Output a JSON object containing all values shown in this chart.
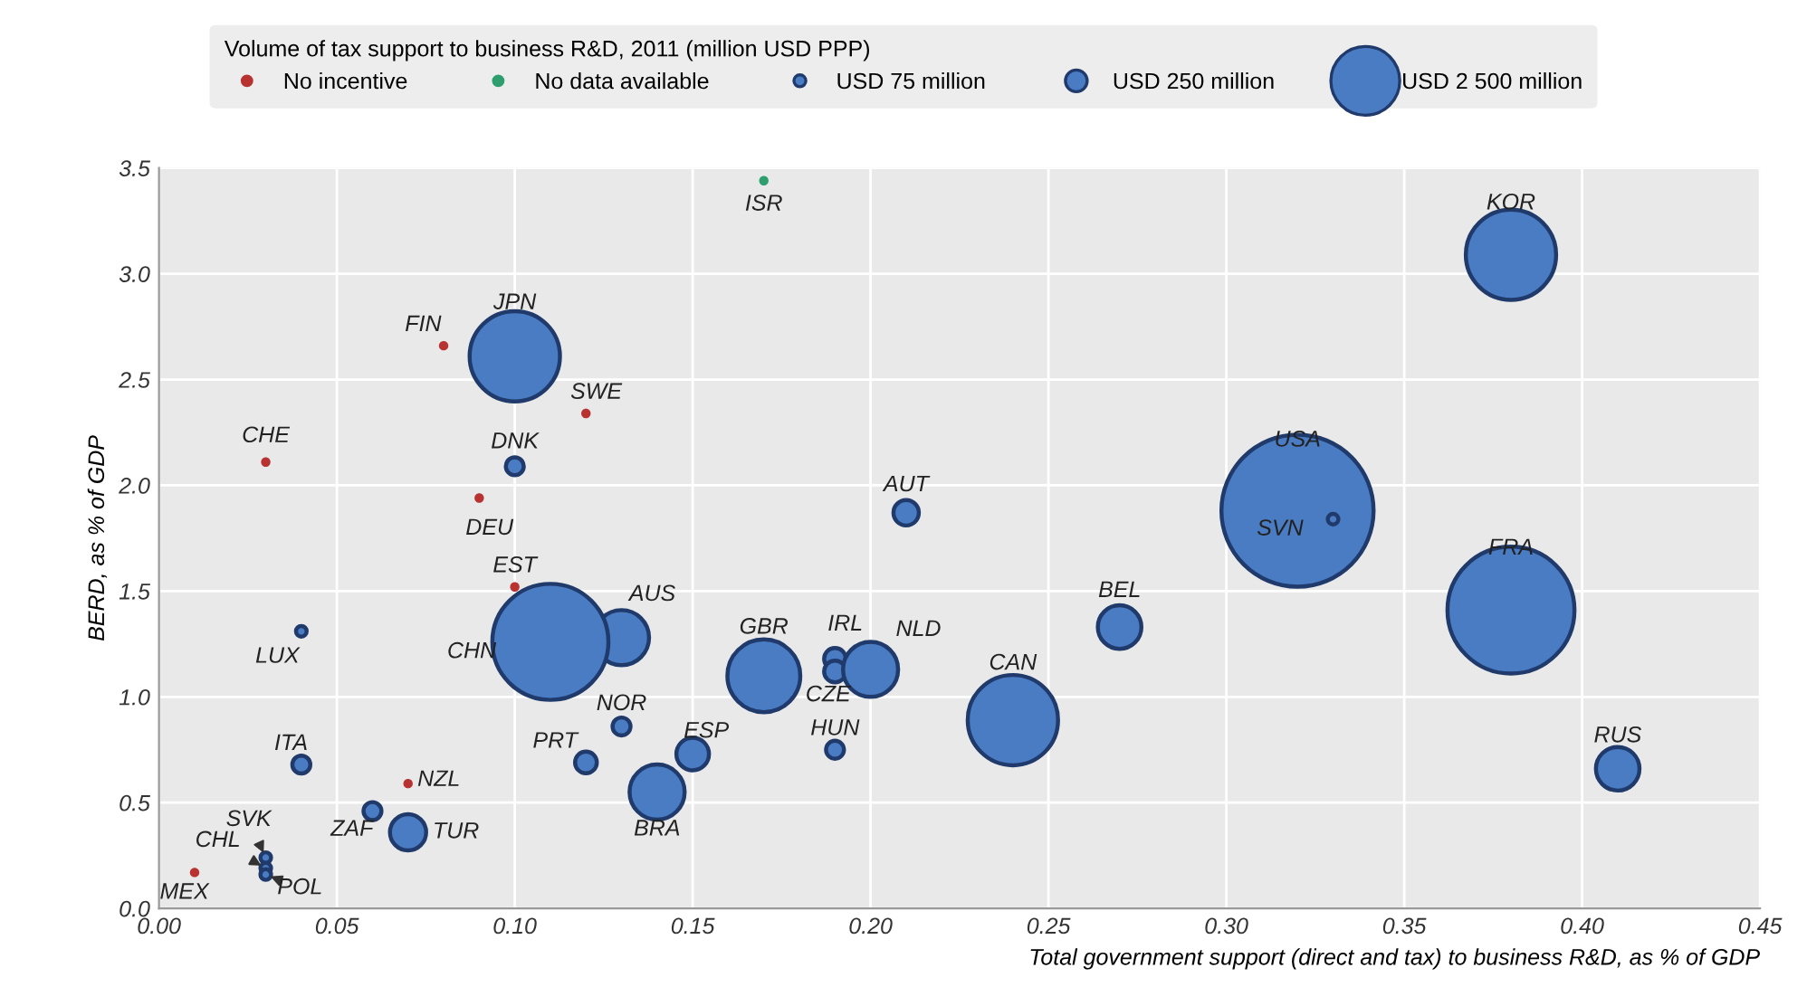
{
  "chart_data": {
    "type": "bubble",
    "legend_title": "Volume of tax support to business R&D, 2011 (million USD PPP)",
    "xlabel": "Total government support (direct and tax) to business R&D, as % of GDP",
    "ylabel": "BERD, as % of GDP",
    "xlim": [
      0,
      0.45
    ],
    "ylim": [
      0,
      3.5
    ],
    "xticks": [
      {
        "value": 0,
        "label": "0.00"
      },
      {
        "value": 0.05,
        "label": "0.05"
      },
      {
        "value": 0.1,
        "label": "0.10"
      },
      {
        "value": 0.15,
        "label": "0.15"
      },
      {
        "value": 0.2,
        "label": "0.20"
      },
      {
        "value": 0.25,
        "label": "0.25"
      },
      {
        "value": 0.3,
        "label": "0.30"
      },
      {
        "value": 0.35,
        "label": "0.35"
      },
      {
        "value": 0.4,
        "label": "0.40"
      },
      {
        "value": 0.45,
        "label": "0.45"
      }
    ],
    "yticks": [
      {
        "value": 0,
        "label": "0.0"
      },
      {
        "value": 0.5,
        "label": "0.5"
      },
      {
        "value": 1,
        "label": "1.0"
      },
      {
        "value": 1.5,
        "label": "1.5"
      },
      {
        "value": 2,
        "label": "2.0"
      },
      {
        "value": 2.5,
        "label": "2.5"
      },
      {
        "value": 3,
        "label": "3.0"
      },
      {
        "value": 3.5,
        "label": "3.5"
      }
    ],
    "grid": true,
    "legend": "top",
    "size_legend": [
      {
        "value": 75,
        "label": "USD 75 million"
      },
      {
        "value": 250,
        "label": "USD 250 million"
      },
      {
        "value": 2500,
        "label": "USD 2 500 million"
      }
    ],
    "series": [
      {
        "name": "No incentive",
        "type": "scatter",
        "color": "#b83232",
        "x": [
          0.08,
          0.12,
          0.03,
          0.09,
          0.1,
          0.07,
          0.01
        ],
        "values": [
          2.66,
          2.34,
          2.11,
          1.94,
          1.52,
          0.59,
          0.17
        ]
      },
      {
        "name": "No data available",
        "type": "scatter",
        "color": "#2e9e6e",
        "x": [
          0.17
        ],
        "values": [
          3.44
        ]
      },
      {
        "color": "#4a7cc4",
        "x": [
          0.1,
          0.1,
          0.21,
          0.13,
          0.11,
          0.04,
          0.17,
          0.19,
          0.19,
          0.2,
          0.13,
          0.12,
          0.15,
          0.19,
          0.14,
          0.04,
          0.06,
          0.07,
          0.03,
          0.03,
          0.03,
          0.38,
          0.32,
          0.33,
          0.38,
          0.27,
          0.24,
          0.41
        ],
        "values": [
          2.61,
          2.09,
          1.87,
          1.28,
          1.26,
          1.31,
          1.1,
          1.18,
          1.12,
          1.13,
          0.86,
          0.69,
          0.73,
          0.75,
          0.55,
          0.68,
          0.46,
          0.36,
          0.24,
          0.19,
          0.16,
          3.09,
          1.88,
          1.84,
          1.41,
          1.33,
          0.89,
          0.66
        ],
        "sizes": [
          4300,
          170,
          340,
          1600,
          7100,
          60,
          2800,
          250,
          250,
          1600,
          170,
          250,
          560,
          170,
          1600,
          170,
          170,
          690,
          60,
          60,
          60,
          4300,
          12200,
          60,
          8500,
          1000,
          4300,
          1000
        ]
      }
    ],
    "annotations": [
      {
        "text": "ISR",
        "x": 0.17,
        "y": 3.44
      },
      {
        "text": "KOR",
        "x": 0.38,
        "y": 3.09
      },
      {
        "text": "JPN",
        "x": 0.1,
        "y": 2.61
      },
      {
        "text": "FIN",
        "x": 0.08,
        "y": 2.66
      },
      {
        "text": "SWE",
        "x": 0.12,
        "y": 2.34
      },
      {
        "text": "CHE",
        "x": 0.03,
        "y": 2.11
      },
      {
        "text": "DNK",
        "x": 0.1,
        "y": 2.09
      },
      {
        "text": "DEU",
        "x": 0.09,
        "y": 1.94
      },
      {
        "text": "EST",
        "x": 0.1,
        "y": 1.52
      },
      {
        "text": "AUT",
        "x": 0.21,
        "y": 1.87
      },
      {
        "text": "USA",
        "x": 0.32,
        "y": 1.88
      },
      {
        "text": "SVN",
        "x": 0.33,
        "y": 1.84
      },
      {
        "text": "FRA",
        "x": 0.38,
        "y": 1.41
      },
      {
        "text": "BEL",
        "x": 0.27,
        "y": 1.33
      },
      {
        "text": "AUS",
        "x": 0.13,
        "y": 1.28
      },
      {
        "text": "LUX",
        "x": 0.04,
        "y": 1.31
      },
      {
        "text": "CHN",
        "x": 0.11,
        "y": 1.26
      },
      {
        "text": "GBR",
        "x": 0.17,
        "y": 1.1
      },
      {
        "text": "IRL",
        "x": 0.19,
        "y": 1.18
      },
      {
        "text": "NLD",
        "x": 0.2,
        "y": 1.13
      },
      {
        "text": "CZE",
        "x": 0.19,
        "y": 1.12
      },
      {
        "text": "CAN",
        "x": 0.24,
        "y": 0.89
      },
      {
        "text": "NOR",
        "x": 0.13,
        "y": 0.86
      },
      {
        "text": "PRT",
        "x": 0.12,
        "y": 0.69
      },
      {
        "text": "ESP",
        "x": 0.15,
        "y": 0.73
      },
      {
        "text": "HUN",
        "x": 0.19,
        "y": 0.75
      },
      {
        "text": "ITA",
        "x": 0.04,
        "y": 0.68
      },
      {
        "text": "NZL",
        "x": 0.07,
        "y": 0.59
      },
      {
        "text": "BRA",
        "x": 0.14,
        "y": 0.55
      },
      {
        "text": "ZAF",
        "x": 0.06,
        "y": 0.46
      },
      {
        "text": "TUR",
        "x": 0.07,
        "y": 0.36
      },
      {
        "text": "RUS",
        "x": 0.41,
        "y": 0.66
      },
      {
        "text": "SVK",
        "x": 0.03,
        "y": 0.24
      },
      {
        "text": "CHL",
        "x": 0.03,
        "y": 0.19
      },
      {
        "text": "POL",
        "x": 0.03,
        "y": 0.16
      },
      {
        "text": "MEX",
        "x": 0.01,
        "y": 0.17
      }
    ]
  }
}
